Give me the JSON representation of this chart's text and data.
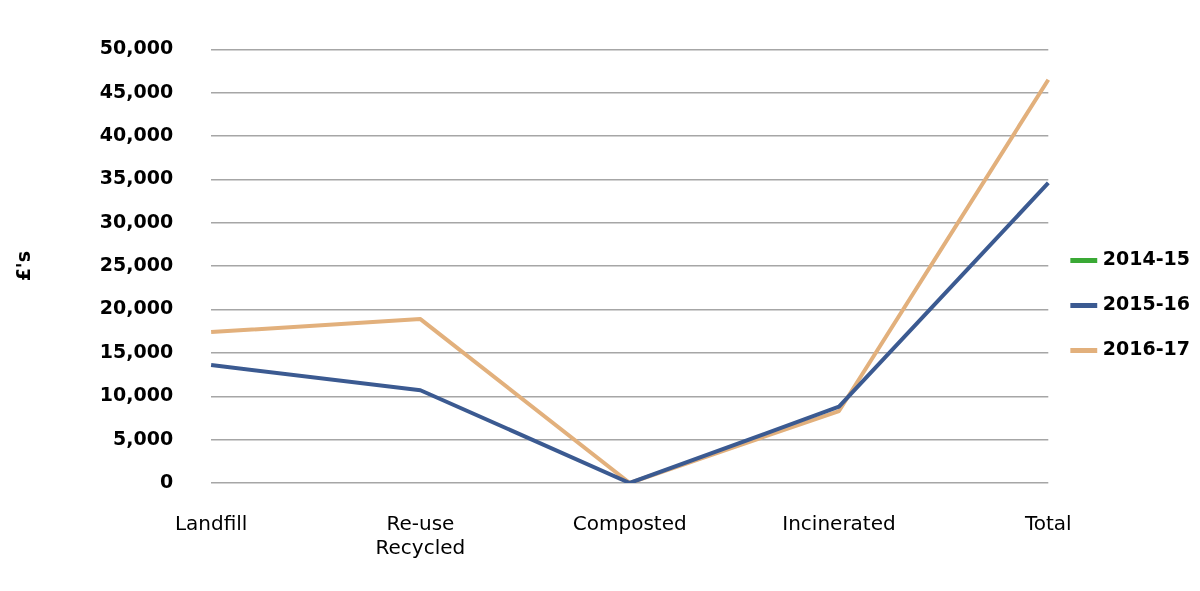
{
  "chart_data": {
    "type": "line",
    "ylabel": "£'s",
    "categories": [
      "Landfill",
      "Re-use\nRecycled",
      "Composted",
      "Incinerated",
      "Total"
    ],
    "series": [
      {
        "name": "2014-15",
        "color": "#3aa935",
        "values": [
          null,
          null,
          null,
          null,
          null
        ]
      },
      {
        "name": "2015-16",
        "color": "#3b5a91",
        "values": [
          13600,
          10700,
          0,
          8800,
          34600
        ]
      },
      {
        "name": "2016-17",
        "color": "#e2b07c",
        "values": [
          17400,
          18900,
          0,
          8300,
          46500
        ]
      }
    ],
    "ylim": [
      0,
      50000
    ],
    "yticks": [
      0,
      {
        "value": 5000,
        "label": "5,000"
      },
      {
        "value": 10000,
        "label": "10,000"
      },
      {
        "value": 15000,
        "label": "15,000"
      },
      {
        "value": 20000,
        "label": "20,000"
      },
      {
        "value": 25000,
        "label": "25,000"
      },
      {
        "value": 30000,
        "label": "30,000"
      },
      {
        "value": 35000,
        "label": "35,000"
      },
      {
        "value": 40000,
        "label": "40,000"
      },
      {
        "value": 45000,
        "label": "45,000"
      },
      {
        "value": 50000,
        "label": "50,000"
      }
    ],
    "grid": "y",
    "legend": "right",
    "marker": "none",
    "line_style": "solid"
  }
}
